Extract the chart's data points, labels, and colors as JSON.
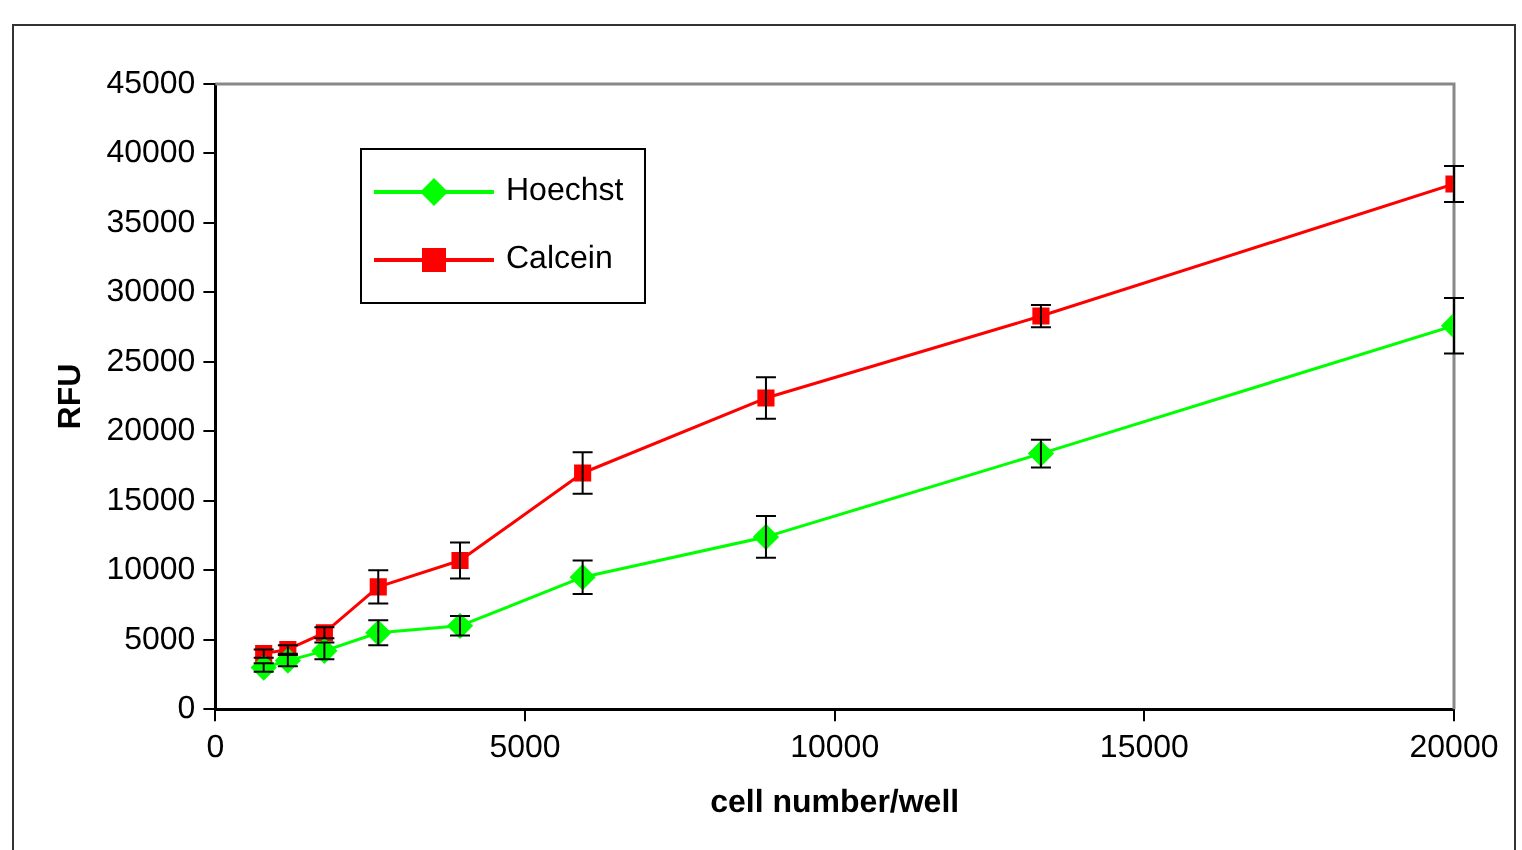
{
  "chart_data": {
    "type": "line",
    "xlabel": "cell number/well",
    "ylabel": "RFU",
    "x": [
      780,
      1170,
      1760,
      2630,
      3950,
      5930,
      8890,
      13330,
      20000
    ],
    "series": [
      {
        "name": "Hoechst",
        "color": "#00ff00",
        "marker": "diamond",
        "values": [
          3000,
          3500,
          4200,
          5500,
          6000,
          9500,
          12400,
          18400,
          27600
        ],
        "errors": [
          300,
          400,
          600,
          900,
          700,
          1200,
          1500,
          1000,
          2000
        ]
      },
      {
        "name": "Calcein",
        "color": "#ff0000",
        "marker": "square",
        "values": [
          4000,
          4300,
          5500,
          8800,
          10700,
          17000,
          22400,
          28300,
          37800
        ],
        "errors": [
          300,
          300,
          400,
          1200,
          1300,
          1500,
          1500,
          800,
          1300
        ]
      }
    ],
    "xlim": [
      0,
      20000
    ],
    "xticks": [
      0,
      5000,
      10000,
      15000,
      20000
    ],
    "ylim": [
      0,
      45000
    ],
    "yticks": [
      0,
      5000,
      10000,
      15000,
      20000,
      25000,
      30000,
      35000,
      40000,
      45000
    ],
    "grid": false,
    "legend": "top left",
    "line_style": "solid"
  }
}
